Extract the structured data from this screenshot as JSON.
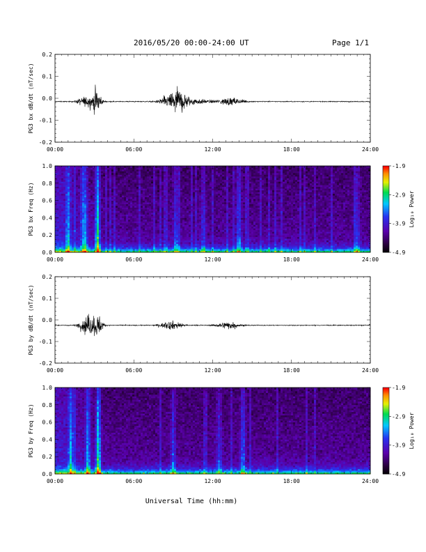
{
  "header": {
    "title": "2016/05/20  00:00-24:00 UT",
    "page": "Page 1/1"
  },
  "common_xlabel": "Universal Time (hh:mm)",
  "chart_data": [
    {
      "type": "line",
      "ylabel": "PG3 bx dB/dt (nT/sec)",
      "x_range_hours": [
        0,
        24
      ],
      "x_ticks": [
        "00:00",
        "06:00",
        "12:00",
        "18:00",
        "24:00"
      ],
      "ylim": [
        -0.2,
        0.2
      ],
      "y_ticks": [
        "-0.2",
        "-0.1",
        "0.0",
        "0.1",
        "0.2"
      ],
      "baseline": -0.015,
      "events": [
        {
          "t": 2.2,
          "amp": 0.045,
          "width": 0.5
        },
        {
          "t": 3.1,
          "amp": 0.11,
          "width": 0.4
        },
        {
          "t": 8.7,
          "amp": 0.05,
          "width": 0.7
        },
        {
          "t": 9.4,
          "amp": 0.1,
          "width": 0.6
        },
        {
          "t": 10.4,
          "amp": 0.03,
          "width": 1.2
        },
        {
          "t": 13.3,
          "amp": 0.035,
          "width": 1.0
        }
      ]
    },
    {
      "type": "heatmap",
      "ylabel": "PG3 bx Freq (Hz)",
      "x_range_hours": [
        0,
        24
      ],
      "x_ticks": [
        "00:00",
        "06:00",
        "12:00",
        "18:00",
        "24:00"
      ],
      "ylim": [
        0,
        1.0
      ],
      "y_ticks": [
        "0.0",
        "0.2",
        "0.4",
        "0.6",
        "0.8",
        "1.0"
      ],
      "colorbar": {
        "label": "Log₁₀ Power",
        "ticks": [
          "-1.9",
          "-2.9",
          "-3.9",
          "-4.9"
        ],
        "range": [
          -4.9,
          -1.9
        ]
      },
      "bursts": [
        {
          "t": 1.0,
          "s": 0.5
        },
        {
          "t": 2.3,
          "s": 0.55
        },
        {
          "t": 3.25,
          "s": 0.9
        },
        {
          "t": 9.2,
          "s": 0.4
        },
        {
          "t": 11.3,
          "s": 0.35
        },
        {
          "t": 14.0,
          "s": 0.5
        },
        {
          "t": 23.0,
          "s": 0.35
        }
      ]
    },
    {
      "type": "line",
      "ylabel": "PG3 by dB/dt (nT/sec)",
      "x_range_hours": [
        0,
        24
      ],
      "x_ticks": [
        "00:00",
        "06:00",
        "12:00",
        "18:00",
        "24:00"
      ],
      "ylim": [
        -0.2,
        0.2
      ],
      "y_ticks": [
        "-0.2",
        "-0.1",
        "0.0",
        "0.1",
        "0.2"
      ],
      "baseline": -0.025,
      "events": [
        {
          "t": 2.4,
          "amp": 0.09,
          "width": 0.5
        },
        {
          "t": 3.2,
          "amp": 0.11,
          "width": 0.4
        },
        {
          "t": 8.9,
          "amp": 0.04,
          "width": 0.8
        },
        {
          "t": 13.2,
          "amp": 0.035,
          "width": 0.8
        }
      ]
    },
    {
      "type": "heatmap",
      "ylabel": "PG3 by Freq (Hz)",
      "x_range_hours": [
        0,
        24
      ],
      "x_ticks": [
        "00:00",
        "06:00",
        "12:00",
        "18:00",
        "24:00"
      ],
      "ylim": [
        0,
        1.0
      ],
      "y_ticks": [
        "0.0",
        "0.2",
        "0.4",
        "0.6",
        "0.8",
        "1.0"
      ],
      "colorbar": {
        "label": "Log₁₀ Power",
        "ticks": [
          "-1.9",
          "-2.9",
          "-3.9",
          "-4.9"
        ],
        "range": [
          -4.9,
          -1.9
        ]
      },
      "bursts": [
        {
          "t": 1.2,
          "s": 0.55
        },
        {
          "t": 2.5,
          "s": 0.6
        },
        {
          "t": 3.3,
          "s": 0.9
        },
        {
          "t": 9.0,
          "s": 0.4
        },
        {
          "t": 12.5,
          "s": 0.35
        },
        {
          "t": 14.3,
          "s": 0.5
        }
      ]
    }
  ]
}
